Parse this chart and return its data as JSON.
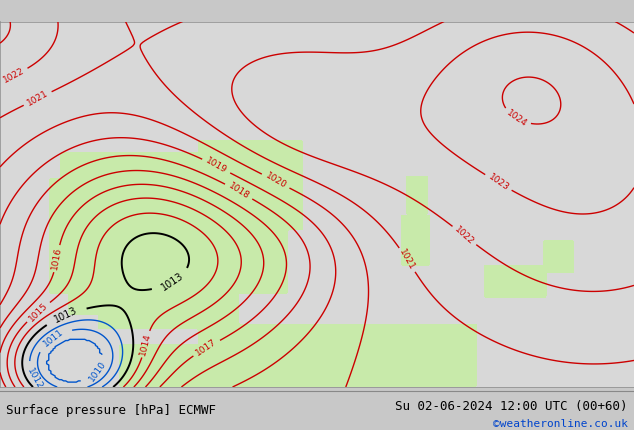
{
  "title_left": "Surface pressure [hPa] ECMWF",
  "title_right": "Su 02-06-2024 12:00 UTC (00+60)",
  "credit": "©weatheronline.co.uk",
  "bg_color": "#d8d8d8",
  "land_color": "#c8eaaa",
  "contour_color_red": "#cc0000",
  "contour_color_black": "#000000",
  "contour_color_blue": "#0055cc",
  "font_size_bottom": 9,
  "font_size_labels": 7,
  "xlim": [
    -12,
    20
  ],
  "ylim": [
    33,
    50.5
  ]
}
